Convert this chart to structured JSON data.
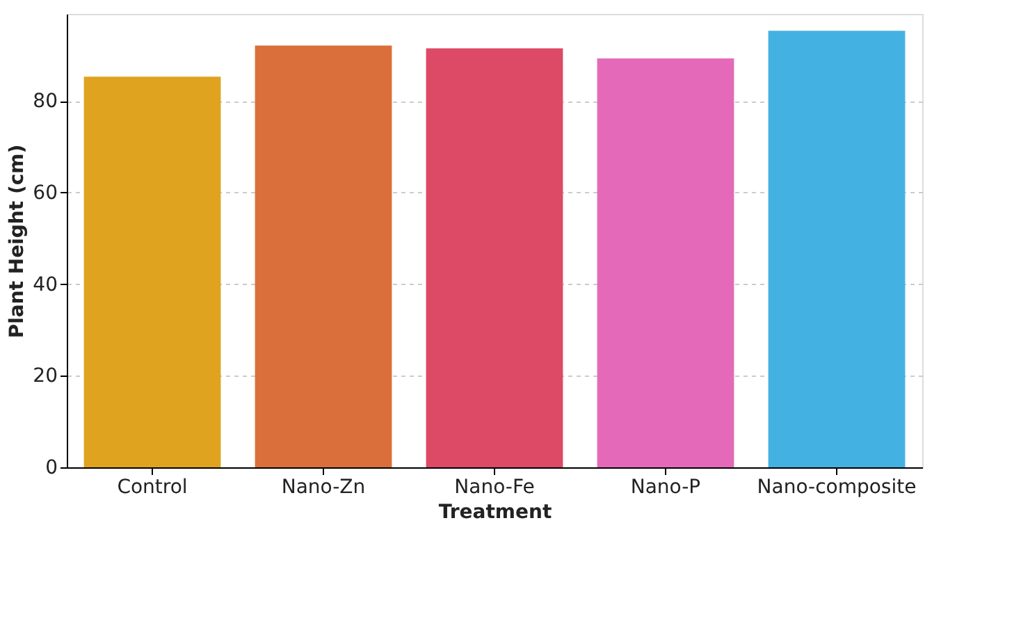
{
  "chart_data": {
    "type": "bar",
    "xlabel": "Treatment",
    "ylabel": "Plant Height (cm)",
    "categories": [
      "Control",
      "Nano-Zn",
      "Nano-Fe",
      "Nano-P",
      "Nano-composite"
    ],
    "values": [
      85.3,
      92.1,
      91.5,
      89.3,
      95.3
    ],
    "colors": [
      "#dfa320",
      "#da6f3b",
      "#dc4a66",
      "#e46ab9",
      "#43b2e2"
    ],
    "ylim": [
      0,
      99
    ],
    "yticks": [
      0,
      20,
      40,
      60,
      80
    ],
    "grid": "y",
    "legend": false
  }
}
